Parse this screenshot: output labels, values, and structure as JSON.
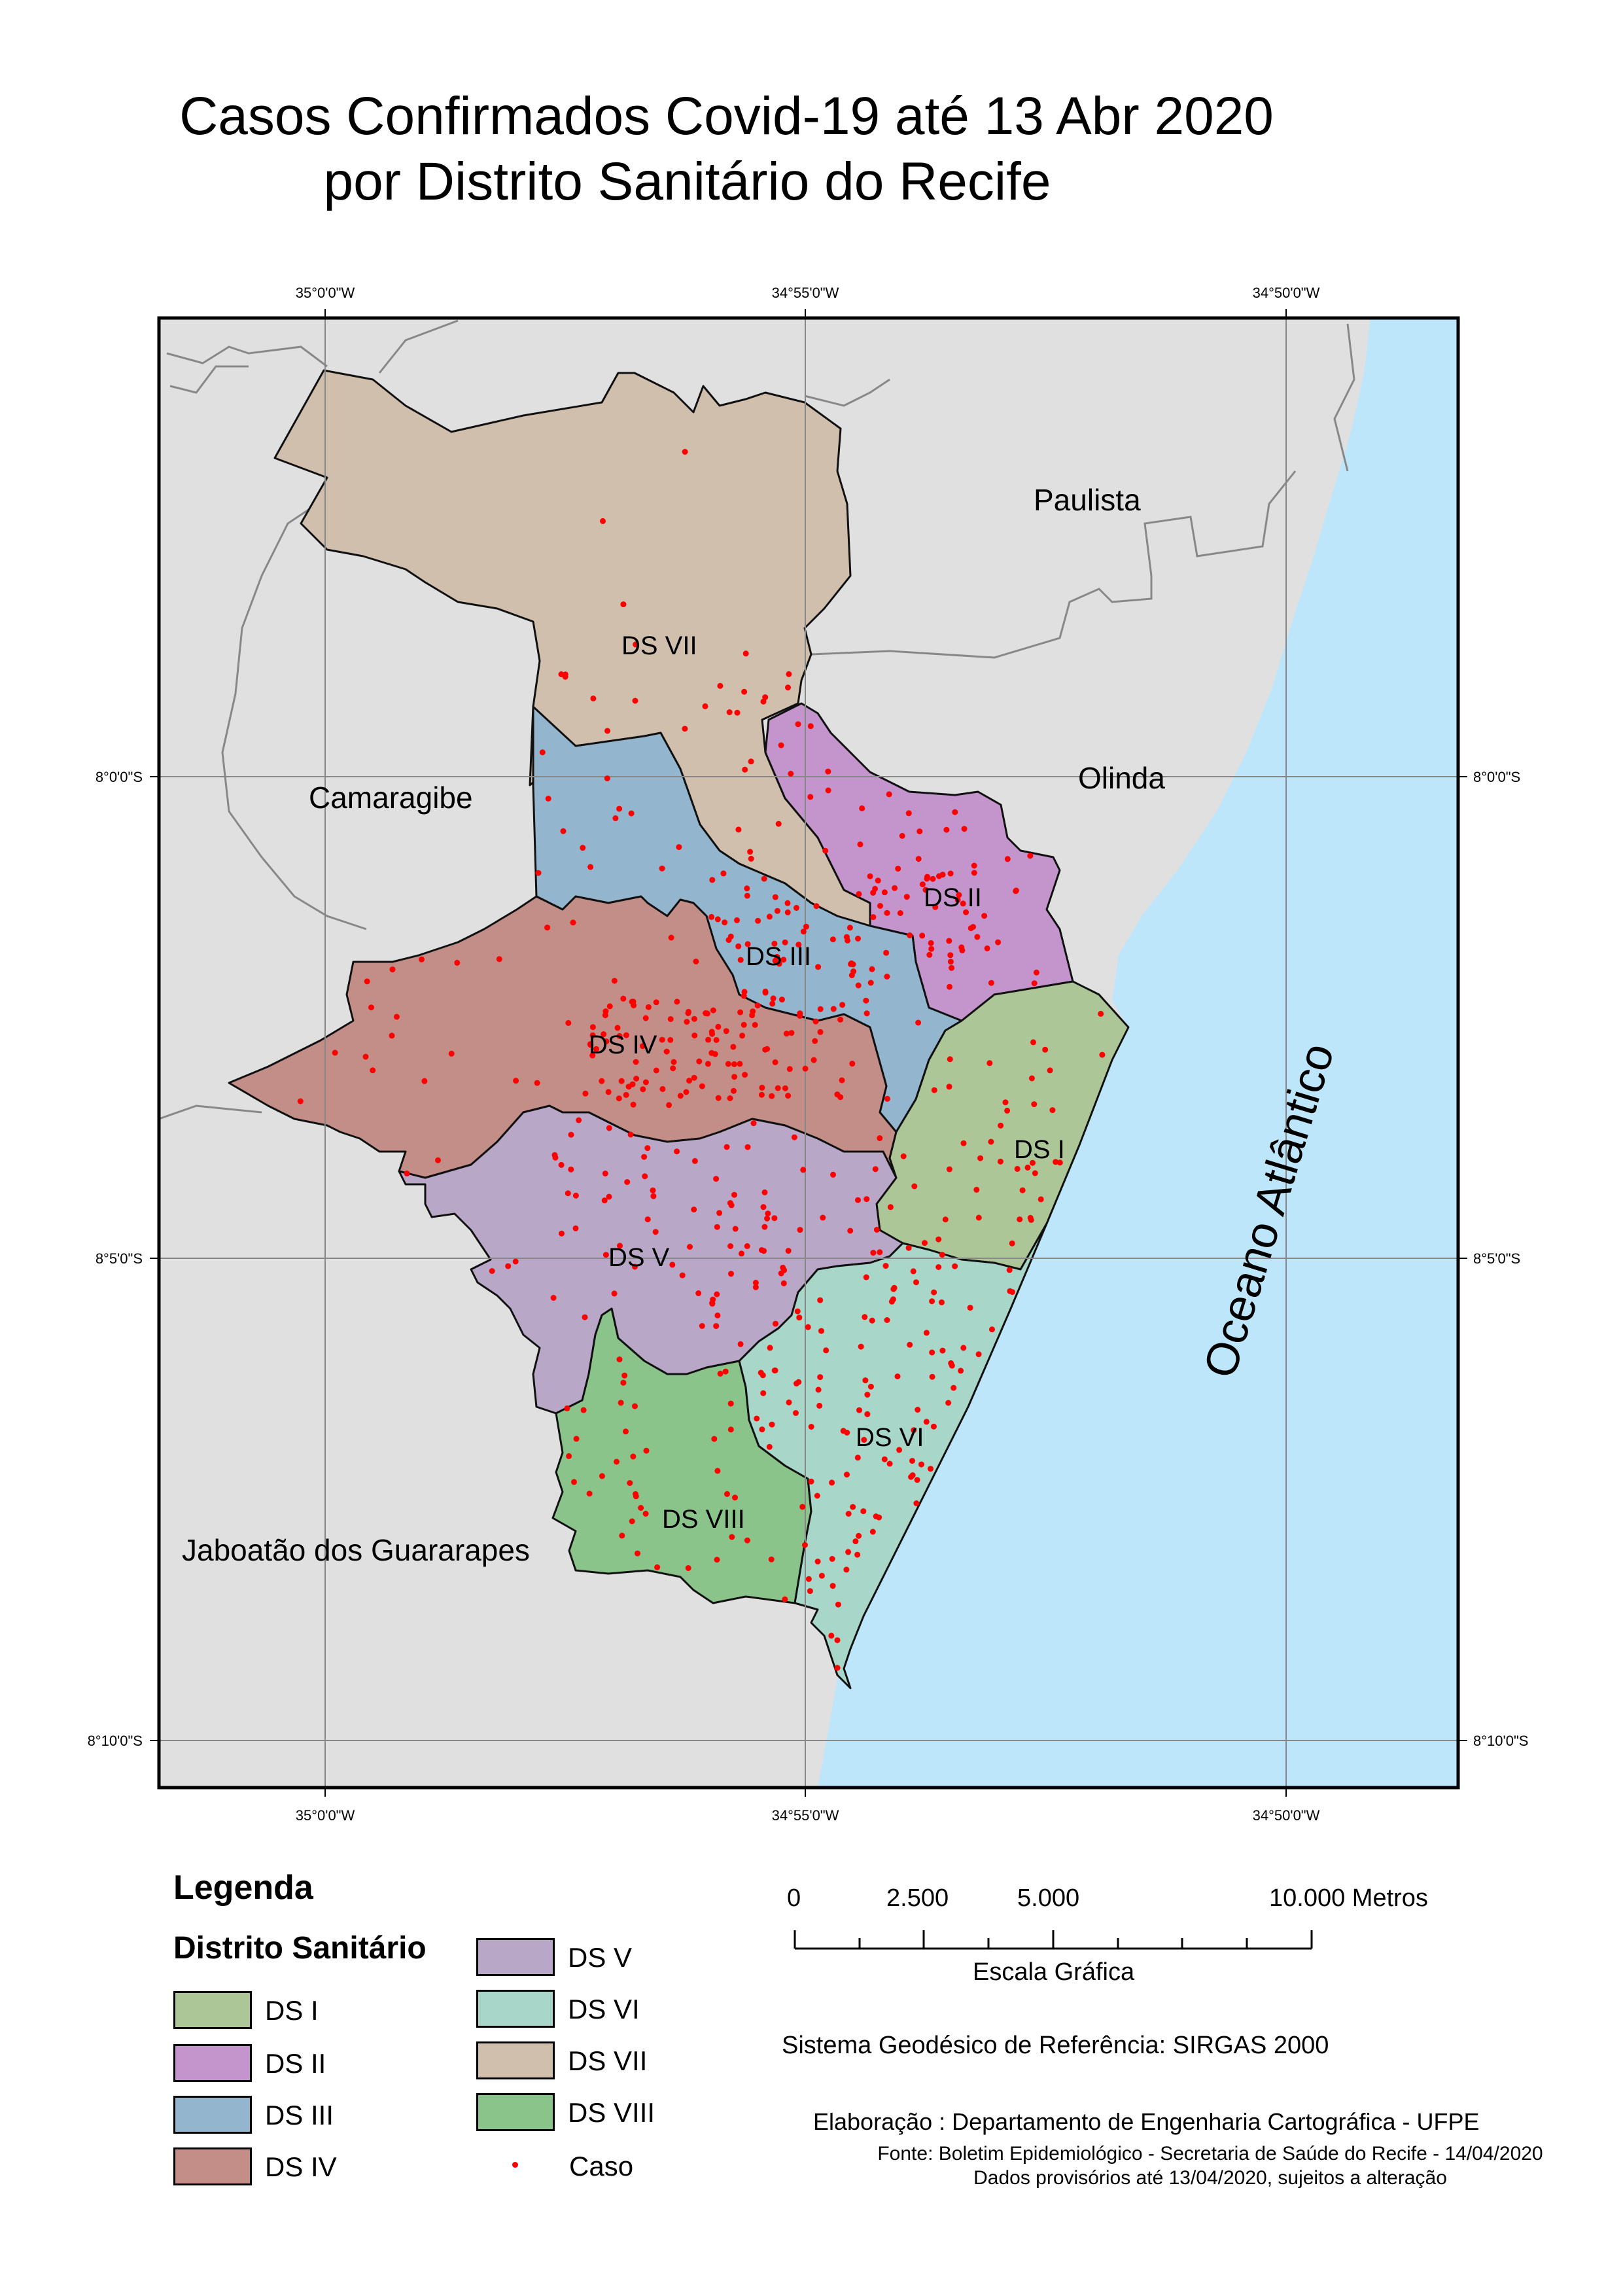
{
  "title_line1": "Casos Confirmados Covid-19 até 13 Abr 2020",
  "title_line2": "por Distrito Sanitário do Recife",
  "grid": {
    "lon_top": [
      "35°0'0\"W",
      "34°55'0\"W",
      "34°50'0\"W"
    ],
    "lon_bottom": [
      "35°0'0\"W",
      "34°55'0\"W",
      "34°50'0\"W"
    ],
    "lat_left": [
      "8°0'0\"S",
      "8°5'0\"S",
      "8°10'0\"S"
    ],
    "lat_right": [
      "8°0'0\"S",
      "8°5'0\"S",
      "8°10'0\"S"
    ]
  },
  "places": {
    "paulista": "Paulista",
    "olinda": "Olinda",
    "camaragibe": "Camaragibe",
    "jaboatao": "Jaboatão dos Guararapes",
    "ocean": "Oceano Atlântico"
  },
  "districts": [
    {
      "label": "DS I",
      "color": "#adc698"
    },
    {
      "label": "DS II",
      "color": "#c494cc"
    },
    {
      "label": "DS III",
      "color": "#93b5cd"
    },
    {
      "label": "DS IV",
      "color": "#c48e88"
    },
    {
      "label": "DS V",
      "color": "#b9a7c8"
    },
    {
      "label": "DS VI",
      "color": "#a8d6c8"
    },
    {
      "label": "DS VII",
      "color": "#d1bfad"
    },
    {
      "label": "DS VIII",
      "color": "#8bc48a"
    }
  ],
  "colors": {
    "ocean": "#bee6fb",
    "land": "#e0e0e0",
    "case_dot": "#ff0000"
  },
  "legend": {
    "title": "Legenda",
    "subtitle": "Distrito Sanitário",
    "case_label": "Caso"
  },
  "scale": {
    "ticks": [
      "0",
      "2.500",
      "5.000",
      "10.000 Metros"
    ],
    "caption": "Escala Gráfica"
  },
  "reference_system": "Sistema Geodésico de Referência: SIRGAS 2000",
  "credits": {
    "elaboration": "Elaboração : Departamento de Engenharia Cartográfica - UFPE",
    "source": "Fonte: Boletim Epidemiológico - Secretaria de Saúde do Recife - 14/04/2020",
    "note": "Dados provisórios até 13/04/2020, sujeitos a alteração"
  }
}
